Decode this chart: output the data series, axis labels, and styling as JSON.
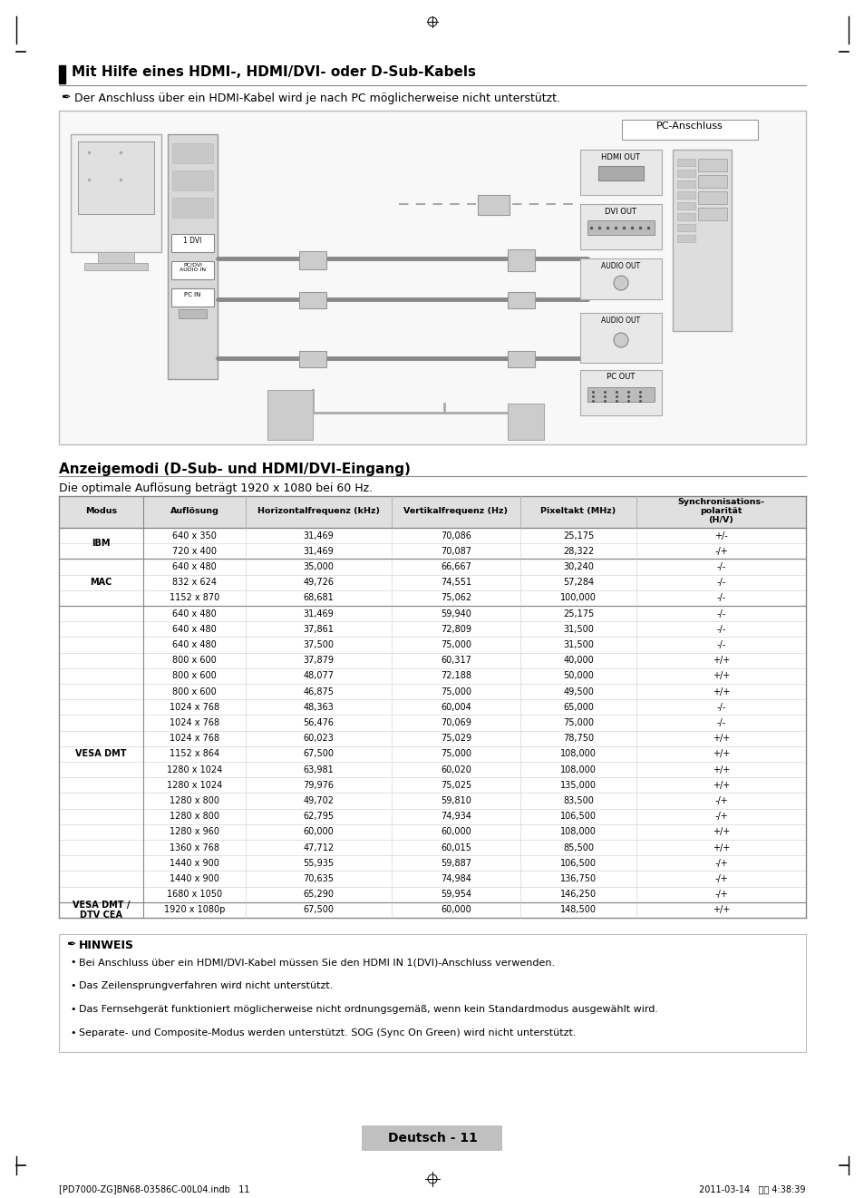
{
  "title": "Mit Hilfe eines HDMI-, HDMI/DVI- oder D-Sub-Kabels",
  "note_top": "Der Anschluss über ein HDMI-Kabel wird je nach PC möglicherweise nicht unterstützt.",
  "section_title": "Anzeigemodi (D-Sub- und HDMI/DVI-Eingang)",
  "section_subtitle": "Die optimale Auflösung beträgt 1920 x 1080 bei 60 Hz.",
  "table_data": [
    [
      "IBM",
      "640 x 350",
      "31,469",
      "70,086",
      "25,175",
      "+/-"
    ],
    [
      "IBM",
      "720 x 400",
      "31,469",
      "70,087",
      "28,322",
      "-/+"
    ],
    [
      "MAC",
      "640 x 480",
      "35,000",
      "66,667",
      "30,240",
      "-/-"
    ],
    [
      "MAC",
      "832 x 624",
      "49,726",
      "74,551",
      "57,284",
      "-/-"
    ],
    [
      "MAC",
      "1152 x 870",
      "68,681",
      "75,062",
      "100,000",
      "-/-"
    ],
    [
      "VESA DMT",
      "640 x 480",
      "31,469",
      "59,940",
      "25,175",
      "-/-"
    ],
    [
      "VESA DMT",
      "640 x 480",
      "37,861",
      "72,809",
      "31,500",
      "-/-"
    ],
    [
      "VESA DMT",
      "640 x 480",
      "37,500",
      "75,000",
      "31,500",
      "-/-"
    ],
    [
      "VESA DMT",
      "800 x 600",
      "37,879",
      "60,317",
      "40,000",
      "+/+"
    ],
    [
      "VESA DMT",
      "800 x 600",
      "48,077",
      "72,188",
      "50,000",
      "+/+"
    ],
    [
      "VESA DMT",
      "800 x 600",
      "46,875",
      "75,000",
      "49,500",
      "+/+"
    ],
    [
      "VESA DMT",
      "1024 x 768",
      "48,363",
      "60,004",
      "65,000",
      "-/-"
    ],
    [
      "VESA DMT",
      "1024 x 768",
      "56,476",
      "70,069",
      "75,000",
      "-/-"
    ],
    [
      "VESA DMT",
      "1024 x 768",
      "60,023",
      "75,029",
      "78,750",
      "+/+"
    ],
    [
      "VESA DMT",
      "1152 x 864",
      "67,500",
      "75,000",
      "108,000",
      "+/+"
    ],
    [
      "VESA DMT",
      "1280 x 1024",
      "63,981",
      "60,020",
      "108,000",
      "+/+"
    ],
    [
      "VESA DMT",
      "1280 x 1024",
      "79,976",
      "75,025",
      "135,000",
      "+/+"
    ],
    [
      "VESA DMT",
      "1280 x 800",
      "49,702",
      "59,810",
      "83,500",
      "-/+"
    ],
    [
      "VESA DMT",
      "1280 x 800",
      "62,795",
      "74,934",
      "106,500",
      "-/+"
    ],
    [
      "VESA DMT",
      "1280 x 960",
      "60,000",
      "60,000",
      "108,000",
      "+/+"
    ],
    [
      "VESA DMT",
      "1360 x 768",
      "47,712",
      "60,015",
      "85,500",
      "+/+"
    ],
    [
      "VESA DMT",
      "1440 x 900",
      "55,935",
      "59,887",
      "106,500",
      "-/+"
    ],
    [
      "VESA DMT",
      "1440 x 900",
      "70,635",
      "74,984",
      "136,750",
      "-/+"
    ],
    [
      "VESA DMT",
      "1680 x 1050",
      "65,290",
      "59,954",
      "146,250",
      "-/+"
    ],
    [
      "VESA DMT /\nDTV CEA",
      "1920 x 1080p",
      "67,500",
      "60,000",
      "148,500",
      "+/+"
    ]
  ],
  "hinweis_items": [
    "Bei Anschluss über ein HDMI/DVI-Kabel müssen Sie den HDMI IN 1(DVI)-Anschluss verwenden.",
    "Das Zeilensprungverfahren wird nicht unterstützt.",
    "Das Fernsehgerät funktioniert möglicherweise nicht ordnungsgemäß, wenn kein Standardmodus ausgewählt wird.",
    "Separate- und Composite-Modus werden unterstützt. SOG (Sync On Green) wird nicht unterstützt."
  ],
  "hinweis_bold": [
    true,
    false,
    false,
    false
  ],
  "page_label": "Deutsch - 11",
  "footer_left": "[PD7000-ZG]BN68-03586C-00L04.indb   11",
  "footer_right": "2011-03-14   오후 4:38:39",
  "bg_color": "#ffffff"
}
